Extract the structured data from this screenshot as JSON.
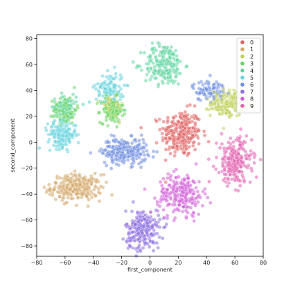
{
  "chart_data": {
    "type": "scatter",
    "title": "",
    "xlabel": "first_component",
    "ylabel": "second_component",
    "xlim": [
      -80,
      80
    ],
    "ylim": [
      -88,
      83
    ],
    "xticks": [
      -80,
      -60,
      -40,
      -20,
      0,
      20,
      40,
      60,
      80
    ],
    "yticks": [
      -80,
      -60,
      -40,
      -20,
      0,
      20,
      40,
      60,
      80
    ],
    "legend_position": "top-right",
    "series": [
      {
        "name": "0",
        "color": "#e06161",
        "clusters": [
          {
            "cx": 22,
            "cy": 7,
            "sx": 7,
            "sy": 9,
            "n": 260
          }
        ]
      },
      {
        "name": "1",
        "color": "#d4a86a",
        "clusters": [
          {
            "cx": -52,
            "cy": -35,
            "sx": 9,
            "sy": 5,
            "n": 260
          }
        ]
      },
      {
        "name": "2",
        "color": "#bfcf56",
        "clusters": [
          {
            "cx": 55,
            "cy": 30,
            "sx": 6,
            "sy": 5,
            "n": 160
          },
          {
            "cx": -27,
            "cy": 27,
            "sx": 4,
            "sy": 4,
            "n": 60
          }
        ]
      },
      {
        "name": "3",
        "color": "#67d45d",
        "clusters": [
          {
            "cx": -27,
            "cy": 25,
            "sx": 4,
            "sy": 5,
            "n": 120
          },
          {
            "cx": -60,
            "cy": 25,
            "sx": 4,
            "sy": 5,
            "n": 90
          }
        ]
      },
      {
        "name": "4",
        "color": "#5fd6a0",
        "clusters": [
          {
            "cx": 10,
            "cy": 60,
            "sx": 7,
            "sy": 8,
            "n": 200
          },
          {
            "cx": -60,
            "cy": 27,
            "sx": 4,
            "sy": 5,
            "n": 100
          }
        ]
      },
      {
        "name": "5",
        "color": "#66d4df",
        "clusters": [
          {
            "cx": -62,
            "cy": 6,
            "sx": 5,
            "sy": 5,
            "n": 170
          },
          {
            "cx": -28,
            "cy": 42,
            "sx": 5,
            "sy": 6,
            "n": 110
          }
        ]
      },
      {
        "name": "6",
        "color": "#6f8ee0",
        "clusters": [
          {
            "cx": -18,
            "cy": -7,
            "sx": 8,
            "sy": 5,
            "n": 240
          },
          {
            "cx": 42,
            "cy": 40,
            "sx": 6,
            "sy": 4,
            "n": 90
          }
        ]
      },
      {
        "name": "7",
        "color": "#8b6ee0",
        "clusters": [
          {
            "cx": -5,
            "cy": -68,
            "sx": 6,
            "sy": 8,
            "n": 230
          }
        ]
      },
      {
        "name": "8",
        "color": "#d15fd9",
        "clusters": [
          {
            "cx": 22,
            "cy": -40,
            "sx": 8,
            "sy": 8,
            "n": 230
          }
        ]
      },
      {
        "name": "9",
        "color": "#e160b0",
        "clusters": [
          {
            "cx": 60,
            "cy": -15,
            "sx": 6,
            "sy": 9,
            "n": 240
          }
        ]
      }
    ]
  }
}
